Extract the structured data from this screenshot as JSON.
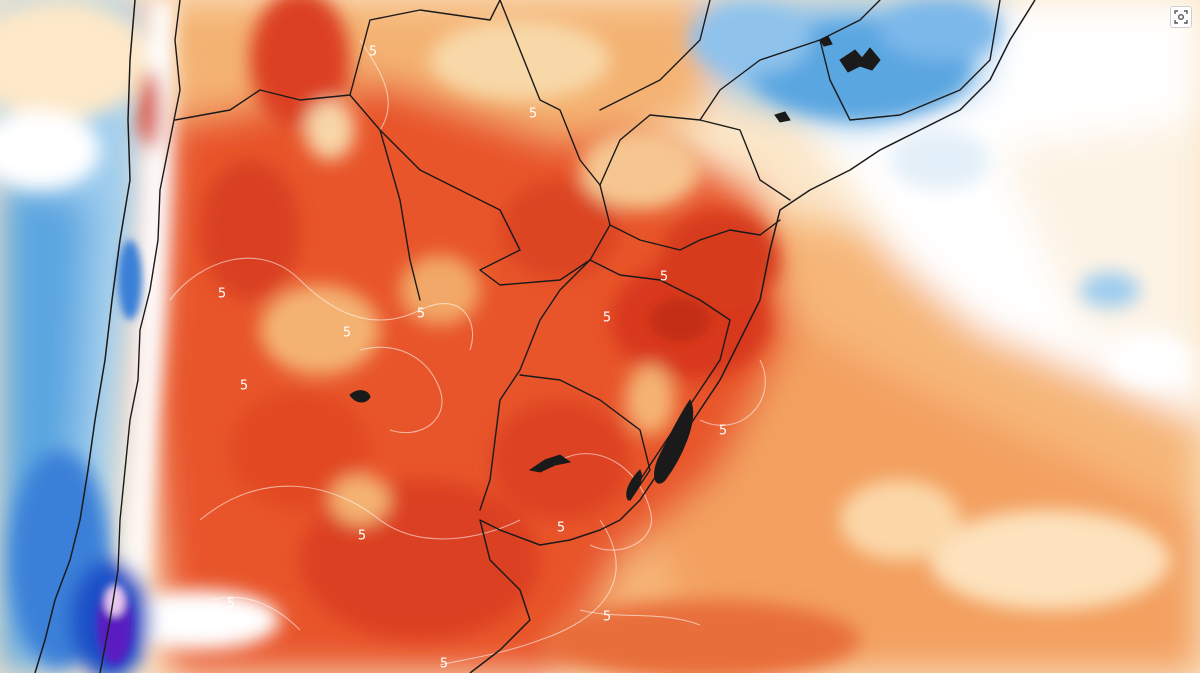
{
  "map": {
    "contour_labels": [
      {
        "id": "c1",
        "text": "5"
      },
      {
        "id": "c2",
        "text": "5"
      },
      {
        "id": "c3",
        "text": "5"
      },
      {
        "id": "c4",
        "text": "5"
      },
      {
        "id": "c5",
        "text": "5"
      },
      {
        "id": "c6",
        "text": "5"
      },
      {
        "id": "c7",
        "text": "5"
      },
      {
        "id": "c8",
        "text": "5"
      },
      {
        "id": "c9",
        "text": "5"
      },
      {
        "id": "c10",
        "text": "5"
      },
      {
        "id": "c11",
        "text": "5"
      },
      {
        "id": "c12",
        "text": "5"
      },
      {
        "id": "c13",
        "text": "5"
      },
      {
        "id": "c14",
        "text": "5"
      }
    ],
    "colors": {
      "deep_red": "#d8381c",
      "red": "#e8552a",
      "orange": "#f08a48",
      "light_orange": "#f6b678",
      "pale": "#fbe2c0",
      "white": "#ffffff",
      "light_blue": "#b9dcf2",
      "blue": "#5aa6e0",
      "deep_blue": "#1f4fc8",
      "violet": "#5a1fc0"
    }
  },
  "controls": {
    "screenshot_icon": "screenshot-capture-icon"
  }
}
